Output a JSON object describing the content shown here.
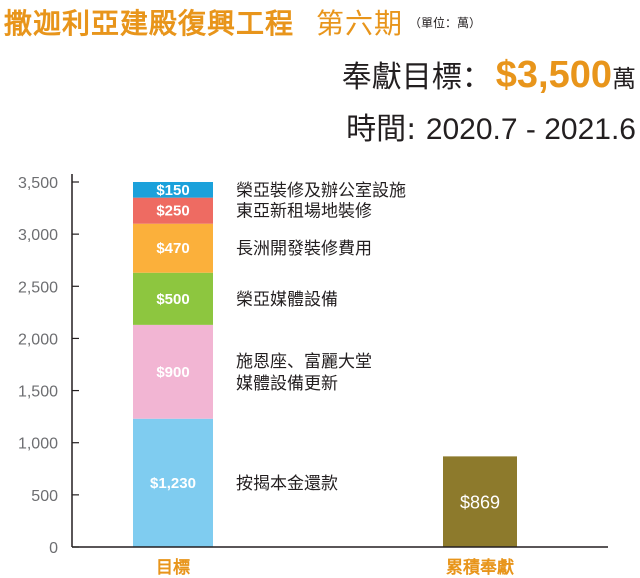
{
  "header": {
    "title": "撒迦利亞建殿復興工程",
    "phase": "第六期",
    "unit": "（單位：萬）",
    "goal_label": "奉獻目標：",
    "goal_amount": "$3,500",
    "goal_suffix": "萬",
    "period_label": "時間: ",
    "period_value": "2020.7 - 2021.6"
  },
  "colors": {
    "title": "#e8951b",
    "cumulative_bar": "#8d7a2c",
    "axis": "#231f20",
    "tick": "#6d6e71"
  },
  "chart_data": {
    "type": "bar",
    "stacked": true,
    "ylim": [
      0,
      3500
    ],
    "yticks": [
      0,
      500,
      1000,
      1500,
      2000,
      2500,
      3000,
      3500
    ],
    "ytick_labels": [
      "0",
      "500",
      "1,000",
      "1,500",
      "2,000",
      "2,500",
      "3,000",
      "3,500"
    ],
    "categories": [
      "目標",
      "累積奉獻"
    ],
    "series": [
      {
        "name": "按揭本金還款",
        "values": [
          1230,
          null
        ],
        "label": "$1,230",
        "color": "#7fccf0",
        "legend": [
          "按揭本金還款"
        ]
      },
      {
        "name": "施恩座、富麗大堂媒體設備更新",
        "values": [
          900,
          null
        ],
        "label": "$900",
        "color": "#f2b5d3",
        "legend": [
          "施恩座、富麗大堂",
          "媒體設備更新"
        ]
      },
      {
        "name": "榮亞媒體設備",
        "values": [
          500,
          null
        ],
        "label": "$500",
        "color": "#8dc63f",
        "legend": [
          "榮亞媒體設備"
        ]
      },
      {
        "name": "長洲開發裝修費用",
        "values": [
          470,
          null
        ],
        "label": "$470",
        "color": "#fbb03b",
        "legend": [
          "長洲開發裝修費用"
        ]
      },
      {
        "name": "東亞新租場地裝修",
        "values": [
          250,
          null
        ],
        "label": "$250",
        "color": "#ee6b62",
        "legend": [
          "東亞新租場地裝修"
        ]
      },
      {
        "name": "榮亞裝修及辦公室設施",
        "values": [
          150,
          null
        ],
        "label": "$150",
        "color": "#1ba1db",
        "legend": [
          "榮亞裝修及辦公室設施"
        ]
      },
      {
        "name": "累積奉獻",
        "values": [
          null,
          869
        ],
        "label": "$869",
        "color": "#8d7a2c"
      }
    ]
  }
}
